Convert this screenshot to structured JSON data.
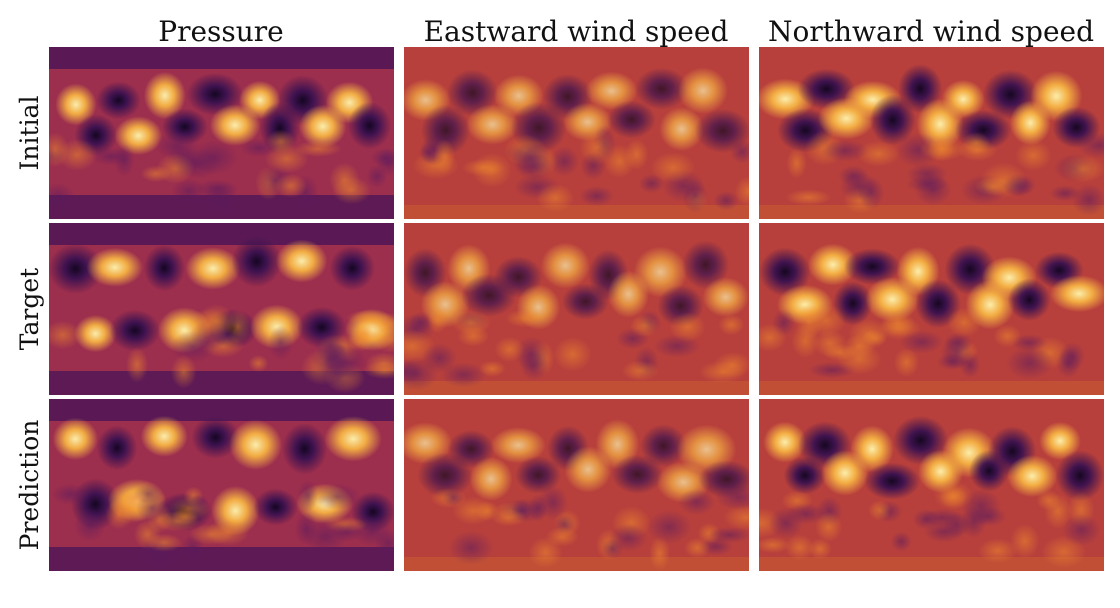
{
  "chart_data": {
    "type": "heatmap",
    "columns": [
      "Pressure",
      "Eastward wind speed",
      "Northward wind speed"
    ],
    "rows": [
      "Initial",
      "Target",
      "Prediction"
    ],
    "colormap": "inferno-like (dark purple to orange to pale yellow)",
    "axes_shown": false,
    "grid": false,
    "panels": [
      {
        "row": "Initial",
        "column": "Pressure"
      },
      {
        "row": "Initial",
        "column": "Eastward wind speed"
      },
      {
        "row": "Initial",
        "column": "Northward wind speed"
      },
      {
        "row": "Target",
        "column": "Pressure"
      },
      {
        "row": "Target",
        "column": "Eastward wind speed"
      },
      {
        "row": "Target",
        "column": "Northward wind speed"
      },
      {
        "row": "Prediction",
        "column": "Pressure"
      },
      {
        "row": "Prediction",
        "column": "Eastward wind speed"
      },
      {
        "row": "Prediction",
        "column": "Northward wind speed"
      }
    ]
  },
  "colors": {
    "colormap_dark": "#1a0a3c",
    "colormap_mid": "#b83a3e",
    "colormap_orange": "#f08a2c",
    "colormap_light": "#fff3a8",
    "background": "#ffffff"
  }
}
